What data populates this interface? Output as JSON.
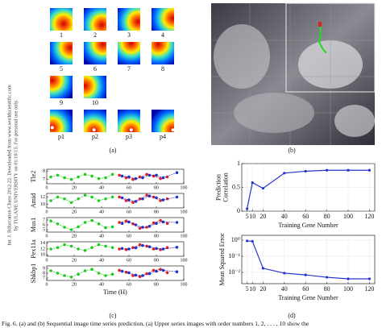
{
  "sidebar": [
    "Int. J. Bifurcation Chaos 2012.22. Downloaded from www.worldscientific.com",
    "by TULANE UNIVERSITY on 01/10/15. For personal use only."
  ],
  "panel_a": {
    "thumbnail_labels": [
      "1",
      "2",
      "3",
      "4",
      "5",
      "6",
      "7",
      "8",
      "9",
      "10",
      "p1",
      "p2",
      "p3",
      "p4"
    ],
    "label": "(a)"
  },
  "panel_b": {
    "label": "(b)"
  },
  "panel_c": {
    "label": "(c)"
  },
  "panel_d": {
    "label": "(d)"
  },
  "caption": "Fig. 6.   (a) and (b) Sequential image time series prediction. (a) Upper series images with order numbers 1, 2, . . . , 10 show the",
  "chart_data": [
    {
      "type": "line",
      "ylabel": "Tle2",
      "xlim": [
        0,
        100
      ],
      "xticks": [
        0,
        20,
        40,
        60,
        80,
        100
      ],
      "ylim": [
        6.5,
        8.2
      ],
      "yticks": [
        7,
        8
      ],
      "series": [
        {
          "color": "#22cc22",
          "x": [
            3,
            8,
            13,
            18,
            23,
            28,
            33,
            38,
            43,
            48
          ],
          "values": [
            7.3,
            7.5,
            7.2,
            7.0,
            7.3,
            7.6,
            7.4,
            7.1,
            7.2,
            7.6
          ]
        },
        {
          "color": "#dd2222",
          "x": [
            53,
            58,
            63,
            68,
            73,
            78,
            83,
            88
          ],
          "values": [
            7.5,
            7.2,
            7.0,
            7.3,
            7.6,
            7.4,
            7.1,
            7.3
          ]
        },
        {
          "color": "#2233cc",
          "x": [
            55,
            60,
            65,
            70,
            75,
            80,
            85,
            95
          ],
          "values": [
            7.4,
            7.3,
            7.1,
            7.2,
            7.5,
            7.5,
            7.2,
            7.8
          ]
        }
      ]
    },
    {
      "type": "line",
      "ylabel": "Amid",
      "xlim": [
        0,
        100
      ],
      "xticks": [
        0,
        20,
        40,
        60,
        80,
        100
      ],
      "ylim": [
        9,
        13
      ],
      "yticks": [
        10,
        12
      ],
      "series": [
        {
          "color": "#22cc22",
          "x": [
            3,
            8,
            13,
            18,
            23,
            28,
            33,
            38,
            43,
            48
          ],
          "values": [
            11,
            12,
            11.5,
            10.5,
            11.5,
            12.5,
            12,
            11,
            11.5,
            12
          ]
        },
        {
          "color": "#dd2222",
          "x": [
            53,
            58,
            63,
            68,
            73,
            78,
            83,
            88
          ],
          "values": [
            12,
            11,
            10.5,
            11.5,
            12.5,
            12,
            11,
            11.5
          ]
        },
        {
          "color": "#2233cc",
          "x": [
            55,
            60,
            65,
            70,
            75,
            80,
            85,
            95
          ],
          "values": [
            11.8,
            11.2,
            10.8,
            11.5,
            12.3,
            11.8,
            11.2,
            12
          ]
        }
      ]
    },
    {
      "type": "line",
      "ylabel": "Mus1",
      "xlim": [
        0,
        100
      ],
      "xticks": [
        0,
        20,
        40,
        60,
        80,
        100
      ],
      "ylim": [
        4.5,
        7.5
      ],
      "yticks": [
        5,
        6,
        7
      ],
      "series": [
        {
          "color": "#22cc22",
          "x": [
            3,
            8,
            13,
            18,
            23,
            28,
            33,
            38,
            43,
            48
          ],
          "values": [
            6.8,
            6.2,
            5.5,
            5.0,
            5.6,
            6.5,
            6.9,
            6.2,
            5.4,
            5.6
          ]
        },
        {
          "color": "#dd2222",
          "x": [
            53,
            58,
            63,
            68,
            73,
            78,
            83,
            88
          ],
          "values": [
            6.5,
            6.8,
            6.2,
            5.3,
            5.5,
            6.4,
            6.9,
            6.3
          ]
        },
        {
          "color": "#2233cc",
          "x": [
            55,
            60,
            65,
            70,
            75,
            80,
            85,
            95
          ],
          "values": [
            6.3,
            6.6,
            6.0,
            5.5,
            5.7,
            6.3,
            6.6,
            6.5
          ]
        }
      ]
    },
    {
      "type": "line",
      "ylabel": "Pex11a",
      "xlim": [
        0,
        100
      ],
      "xticks": [
        0,
        20,
        40,
        60,
        80,
        100
      ],
      "ylim": [
        9.5,
        14.5
      ],
      "yticks": [
        10,
        12,
        14
      ],
      "series": [
        {
          "color": "#22cc22",
          "x": [
            3,
            8,
            13,
            18,
            23,
            28,
            33,
            38,
            43,
            48
          ],
          "values": [
            12,
            12.5,
            13.5,
            13,
            12,
            11.5,
            12.5,
            13.5,
            13,
            12.5
          ]
        },
        {
          "color": "#dd2222",
          "x": [
            53,
            58,
            63,
            68,
            73,
            78,
            83,
            88
          ],
          "values": [
            12,
            11.8,
            12.5,
            13.5,
            13,
            12,
            11.8,
            12.5
          ]
        },
        {
          "color": "#2233cc",
          "x": [
            55,
            60,
            65,
            70,
            75,
            80,
            85,
            95
          ],
          "values": [
            12.2,
            12,
            12.4,
            13.2,
            12.8,
            12.2,
            12,
            12.6
          ]
        }
      ]
    },
    {
      "type": "line",
      "ylabel": "Shkbp1",
      "xlabel": "Time (H)",
      "xlim": [
        0,
        100
      ],
      "xticks": [
        0,
        20,
        40,
        60,
        80,
        100
      ],
      "ylim": [
        6.5,
        9.5
      ],
      "yticks": [
        7,
        8,
        9
      ],
      "series": [
        {
          "color": "#22cc22",
          "x": [
            3,
            8,
            13,
            18,
            23,
            28,
            33,
            38,
            43,
            48
          ],
          "values": [
            8.5,
            8,
            7.5,
            7.2,
            7.8,
            8.5,
            8.8,
            8,
            7.5,
            7.8
          ]
        },
        {
          "color": "#dd2222",
          "x": [
            53,
            58,
            63,
            68,
            73,
            78,
            83,
            88
          ],
          "values": [
            8.6,
            8.2,
            7.5,
            7.3,
            7.9,
            8.6,
            8.8,
            8.1
          ]
        },
        {
          "color": "#2233cc",
          "x": [
            55,
            60,
            65,
            70,
            75,
            80,
            85,
            95
          ],
          "values": [
            8.4,
            8.1,
            7.6,
            7.5,
            7.9,
            8.4,
            8.6,
            8.3
          ]
        }
      ]
    },
    {
      "type": "line",
      "ylabel": [
        "Prediction",
        "Correlation"
      ],
      "xlabel": "Training Gene Number",
      "xlim": [
        0,
        125
      ],
      "xticks": [
        5,
        10,
        20,
        40,
        60,
        80,
        100,
        120
      ],
      "ylim": [
        0,
        1
      ],
      "yticks": [
        0,
        0.5,
        1
      ],
      "series": [
        {
          "color": "#2233cc",
          "x": [
            5,
            10,
            20,
            40,
            60,
            80,
            100,
            120
          ],
          "values": [
            0.05,
            0.6,
            0.48,
            0.8,
            0.84,
            0.86,
            0.86,
            0.86
          ]
        }
      ]
    },
    {
      "type": "line",
      "log_y": true,
      "ylabel": [
        "Mean Squared Error"
      ],
      "xlabel": "Training Gene Number",
      "xlim": [
        0,
        125
      ],
      "xticks": [
        5,
        10,
        20,
        40,
        60,
        80,
        100,
        120
      ],
      "ylim": [
        0.002,
        2
      ],
      "yticks": [
        {
          "value": 1,
          "label": "10⁰"
        },
        {
          "value": 0.1,
          "label": "10⁻¹"
        },
        {
          "value": 0.01,
          "label": "10⁻²"
        }
      ],
      "series": [
        {
          "color": "#2233cc",
          "x": [
            5,
            10,
            20,
            40,
            60,
            80,
            100,
            120
          ],
          "values": [
            0.9,
            0.85,
            0.018,
            0.009,
            0.007,
            0.005,
            0.004,
            0.004
          ]
        }
      ]
    }
  ]
}
